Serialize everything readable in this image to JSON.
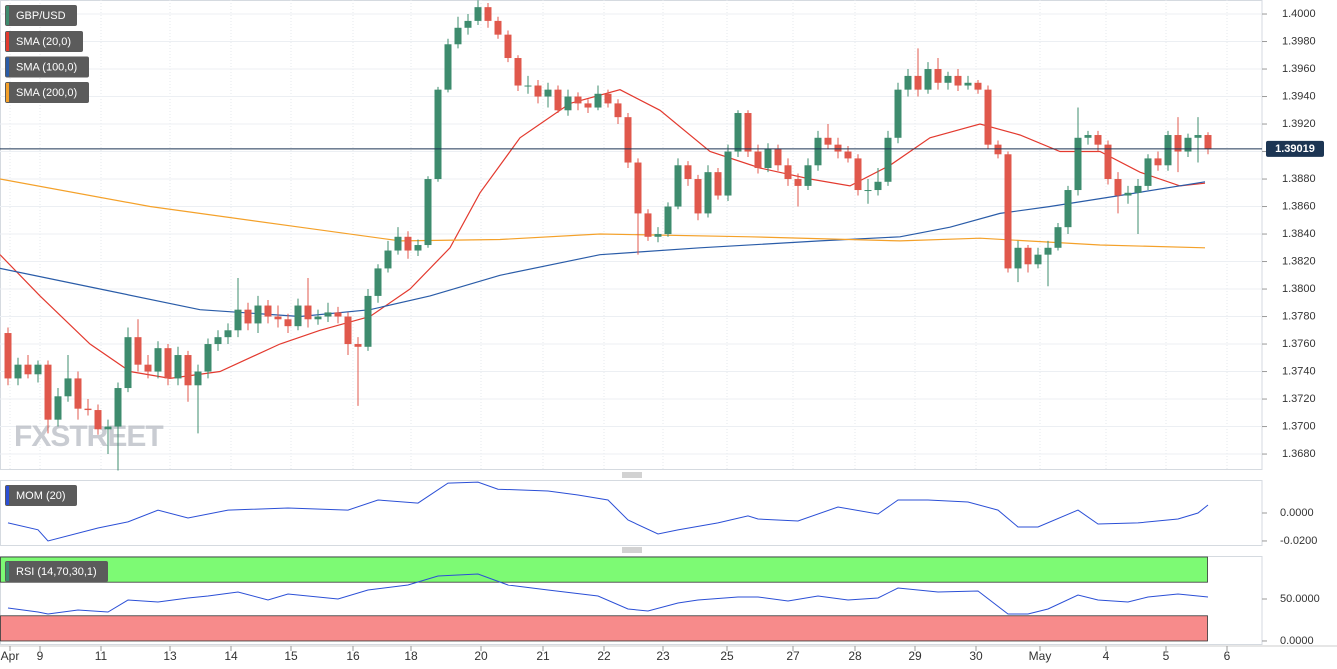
{
  "chart_data": [
    {
      "type": "candlestick",
      "symbol": "GBP/USD",
      "watermark": "FXSTREET",
      "up_color": "#3e8c6e",
      "down_color": "#e0584c",
      "xlim": [
        -0.8,
        120.7
      ],
      "xticks": [
        {
          "value": 0.2,
          "label": "Apr"
        },
        {
          "value": 3.2,
          "label": "9"
        },
        {
          "value": 9.3,
          "label": "11"
        },
        {
          "value": 16.2,
          "label": "13"
        },
        {
          "value": 22.3,
          "label": "14"
        },
        {
          "value": 28.3,
          "label": "15"
        },
        {
          "value": 34.5,
          "label": "16"
        },
        {
          "value": 40.3,
          "label": "18"
        },
        {
          "value": 47.3,
          "label": "20"
        },
        {
          "value": 53.5,
          "label": "21"
        },
        {
          "value": 59.6,
          "label": "22"
        },
        {
          "value": 65.5,
          "label": "23"
        },
        {
          "value": 71.9,
          "label": "25"
        },
        {
          "value": 78.5,
          "label": "27"
        },
        {
          "value": 84.7,
          "label": "28"
        },
        {
          "value": 90.7,
          "label": "29"
        },
        {
          "value": 96.8,
          "label": "30"
        },
        {
          "value": 103.2,
          "label": "May"
        },
        {
          "value": 109.8,
          "label": "4"
        },
        {
          "value": 115.8,
          "label": "5"
        },
        {
          "value": 121.9,
          "label": "6"
        }
      ],
      "ylim": [
        1.36684,
        1.40102
      ],
      "yticks": [
        {
          "value": 1.368,
          "label": "1.3680"
        },
        {
          "value": 1.37,
          "label": "1.3700"
        },
        {
          "value": 1.372,
          "label": "1.3720"
        },
        {
          "value": 1.374,
          "label": "1.3740"
        },
        {
          "value": 1.376,
          "label": "1.3760"
        },
        {
          "value": 1.378,
          "label": "1.3780"
        },
        {
          "value": 1.38,
          "label": "1.3800"
        },
        {
          "value": 1.382,
          "label": "1.3820"
        },
        {
          "value": 1.384,
          "label": "1.3840"
        },
        {
          "value": 1.386,
          "label": "1.3860"
        },
        {
          "value": 1.388,
          "label": "1.3880"
        },
        {
          "value": 1.39,
          "label": "1.3900"
        },
        {
          "value": 1.392,
          "label": "1.3920"
        },
        {
          "value": 1.394,
          "label": "1.3940"
        },
        {
          "value": 1.396,
          "label": "1.3960"
        },
        {
          "value": 1.398,
          "label": "1.3980"
        },
        {
          "value": 1.4,
          "label": "1.4000"
        }
      ],
      "grid": true,
      "last_price": 1.39019,
      "last_price_color": "#1c3553",
      "open": [
        1.3768,
        1.3735,
        1.3745,
        1.3738,
        1.3745,
        1.3705,
        1.3722,
        1.3735,
        1.3713,
        1.3712,
        1.3698,
        1.37,
        1.3728,
        1.3765,
        1.3745,
        1.374,
        1.3757,
        1.3735,
        1.3752,
        1.373,
        1.374,
        1.376,
        1.3765,
        1.377,
        1.3785,
        1.3775,
        1.3788,
        1.378,
        1.3778,
        1.3773,
        1.3788,
        1.3778,
        1.378,
        1.3783,
        1.378,
        1.376,
        1.3758,
        1.3795,
        1.3815,
        1.3828,
        1.3838,
        1.3828,
        1.3832,
        1.388,
        1.3945,
        1.3978,
        1.399,
        1.3995,
        1.4005,
        1.3995,
        1.3985,
        1.3968,
        1.3948,
        1.3948,
        1.394,
        1.3945,
        1.393,
        1.394,
        1.3935,
        1.3932,
        1.3942,
        1.3935,
        1.3925,
        1.3892,
        1.3855,
        1.3838,
        1.384,
        1.386,
        1.389,
        1.388,
        1.3855,
        1.3885,
        1.3868,
        1.39,
        1.3928,
        1.39,
        1.3888,
        1.3902,
        1.389,
        1.388,
        1.3875,
        1.389,
        1.391,
        1.3905,
        1.39,
        1.3895,
        1.3872,
        1.3872,
        1.3878,
        1.391,
        1.3945,
        1.3955,
        1.3945,
        1.396,
        1.395,
        1.3955,
        1.3948,
        1.395,
        1.3945,
        1.3905,
        1.3898,
        1.3815,
        1.383,
        1.3818,
        1.3825,
        1.383,
        1.3845,
        1.3872,
        1.391,
        1.3912,
        1.3905,
        1.388,
        1.3868,
        1.387,
        1.3875,
        1.3895,
        1.389,
        1.3912,
        1.39,
        1.391,
        1.3912
      ],
      "high": [
        1.3772,
        1.375,
        1.3752,
        1.3748,
        1.3748,
        1.3728,
        1.3752,
        1.374,
        1.372,
        1.3716,
        1.3705,
        1.3732,
        1.3772,
        1.3778,
        1.3752,
        1.3762,
        1.376,
        1.3758,
        1.3755,
        1.3745,
        1.3764,
        1.377,
        1.3775,
        1.3808,
        1.379,
        1.3795,
        1.3792,
        1.3788,
        1.3782,
        1.3793,
        1.3808,
        1.3785,
        1.379,
        1.3787,
        1.3783,
        1.3765,
        1.38,
        1.3818,
        1.3835,
        1.3845,
        1.3842,
        1.3836,
        1.3882,
        1.3947,
        1.3982,
        1.3998,
        1.4,
        1.401,
        1.4008,
        1.3998,
        1.3988,
        1.397,
        1.3955,
        1.3952,
        1.395,
        1.3948,
        1.3945,
        1.3943,
        1.3938,
        1.3948,
        1.3945,
        1.3938,
        1.3928,
        1.3895,
        1.3858,
        1.3845,
        1.3863,
        1.3895,
        1.3893,
        1.3883,
        1.389,
        1.3888,
        1.3905,
        1.393,
        1.393,
        1.3905,
        1.3906,
        1.3905,
        1.3895,
        1.3884,
        1.3895,
        1.3915,
        1.392,
        1.391,
        1.3904,
        1.3898,
        1.388,
        1.3888,
        1.3915,
        1.395,
        1.396,
        1.3975,
        1.3965,
        1.3968,
        1.3958,
        1.396,
        1.3955,
        1.3952,
        1.3948,
        1.3908,
        1.39,
        1.3835,
        1.3832,
        1.383,
        1.3835,
        1.3848,
        1.3875,
        1.3932,
        1.3915,
        1.3915,
        1.3908,
        1.3885,
        1.3875,
        1.388,
        1.3898,
        1.39,
        1.3915,
        1.3925,
        1.3913,
        1.3925,
        1.3914
      ],
      "low": [
        1.373,
        1.373,
        1.3735,
        1.3732,
        1.3695,
        1.37,
        1.3718,
        1.3705,
        1.3708,
        1.3694,
        1.368,
        1.3668,
        1.3725,
        1.374,
        1.3735,
        1.3735,
        1.373,
        1.373,
        1.3718,
        1.3695,
        1.3735,
        1.3755,
        1.376,
        1.3765,
        1.377,
        1.3768,
        1.3775,
        1.3772,
        1.3768,
        1.377,
        1.3772,
        1.3774,
        1.3776,
        1.3775,
        1.3752,
        1.3715,
        1.3755,
        1.379,
        1.3812,
        1.3825,
        1.3822,
        1.3824,
        1.383,
        1.3878,
        1.3943,
        1.3975,
        1.3985,
        1.3992,
        1.399,
        1.3982,
        1.3965,
        1.3944,
        1.3942,
        1.3935,
        1.3932,
        1.3928,
        1.3926,
        1.393,
        1.3928,
        1.393,
        1.3932,
        1.392,
        1.3888,
        1.3825,
        1.3835,
        1.3834,
        1.3838,
        1.3858,
        1.3875,
        1.385,
        1.3852,
        1.3865,
        1.3864,
        1.3896,
        1.3896,
        1.3884,
        1.3885,
        1.3886,
        1.3875,
        1.386,
        1.3872,
        1.3886,
        1.3902,
        1.3895,
        1.3892,
        1.3868,
        1.3862,
        1.3868,
        1.3875,
        1.3906,
        1.394,
        1.394,
        1.3942,
        1.3945,
        1.3945,
        1.3944,
        1.3945,
        1.3942,
        1.3902,
        1.3895,
        1.3812,
        1.3805,
        1.3812,
        1.3815,
        1.3802,
        1.3828,
        1.384,
        1.3868,
        1.3905,
        1.39,
        1.3876,
        1.3855,
        1.3862,
        1.384,
        1.3872,
        1.3886,
        1.3886,
        1.3885,
        1.3896,
        1.3892,
        1.3898
      ],
      "close": [
        1.3735,
        1.3745,
        1.3738,
        1.3745,
        1.3705,
        1.3722,
        1.3735,
        1.3713,
        1.3712,
        1.3698,
        1.37,
        1.3728,
        1.3765,
        1.3745,
        1.374,
        1.3757,
        1.3735,
        1.3752,
        1.373,
        1.374,
        1.376,
        1.3765,
        1.377,
        1.3785,
        1.3775,
        1.3788,
        1.378,
        1.3778,
        1.3773,
        1.3788,
        1.3778,
        1.378,
        1.3783,
        1.378,
        1.376,
        1.3758,
        1.3795,
        1.3815,
        1.3828,
        1.3838,
        1.3828,
        1.3832,
        1.388,
        1.3945,
        1.3978,
        1.399,
        1.3995,
        1.4005,
        1.3995,
        1.3985,
        1.3968,
        1.3948,
        1.3948,
        1.394,
        1.3945,
        1.393,
        1.394,
        1.3935,
        1.3932,
        1.3942,
        1.3935,
        1.3925,
        1.3892,
        1.3855,
        1.3838,
        1.384,
        1.386,
        1.389,
        1.388,
        1.3855,
        1.3885,
        1.3868,
        1.39,
        1.3928,
        1.39,
        1.3888,
        1.3902,
        1.389,
        1.388,
        1.3875,
        1.389,
        1.391,
        1.3905,
        1.39,
        1.3895,
        1.3872,
        1.3872,
        1.3878,
        1.391,
        1.3945,
        1.3955,
        1.3945,
        1.396,
        1.395,
        1.3955,
        1.3948,
        1.395,
        1.3945,
        1.3905,
        1.3898,
        1.3815,
        1.383,
        1.3818,
        1.3825,
        1.383,
        1.3845,
        1.3872,
        1.391,
        1.3912,
        1.3905,
        1.388,
        1.3868,
        1.387,
        1.3875,
        1.3895,
        1.389,
        1.3912,
        1.39,
        1.391,
        1.3912,
        1.3902
      ],
      "overlays": [
        {
          "name": "SMA (20,0)",
          "color": "#e33a2f",
          "x": [
            -0.8,
            3.2,
            8.2,
            12.2,
            16.2,
            21.2,
            27.2,
            31.2,
            36.2,
            40.2,
            44.2,
            47.2,
            51.2,
            56.2,
            61.2,
            65.2,
            70.2,
            75.2,
            80.2,
            84.2,
            88.2,
            92.2,
            97.2,
            101.2,
            105.2,
            109.2,
            113.2,
            117.2,
            119.7
          ],
          "values": [
            1.3825,
            1.3795,
            1.376,
            1.374,
            1.3735,
            1.374,
            1.376,
            1.377,
            1.378,
            1.38,
            1.383,
            1.387,
            1.391,
            1.3935,
            1.3945,
            1.393,
            1.39,
            1.3888,
            1.388,
            1.3875,
            1.389,
            1.391,
            1.392,
            1.3912,
            1.39,
            1.39,
            1.3885,
            1.3875,
            1.3877
          ]
        },
        {
          "name": "SMA (100,0)",
          "color": "#2a5ca8",
          "x": [
            -0.8,
            9.2,
            19.2,
            29.2,
            36.2,
            42.2,
            49.2,
            59.2,
            69.2,
            81.2,
            89.2,
            94.2,
            99.2,
            104.2,
            111.2,
            119.7
          ],
          "values": [
            1.3815,
            1.38,
            1.3785,
            1.378,
            1.3785,
            1.3795,
            1.381,
            1.3825,
            1.383,
            1.3835,
            1.3838,
            1.3845,
            1.3855,
            1.386,
            1.3868,
            1.3878
          ]
        },
        {
          "name": "SMA (200,0)",
          "color": "#f4a12a",
          "x": [
            -0.8,
            14.2,
            29.2,
            39.2,
            49.2,
            59.2,
            74.2,
            89.2,
            97.2,
            109.2,
            119.7
          ],
          "values": [
            1.388,
            1.386,
            1.3845,
            1.3835,
            1.3836,
            1.384,
            1.3838,
            1.3835,
            1.3837,
            1.3832,
            1.383
          ]
        }
      ]
    },
    {
      "type": "line",
      "name": "MOM (20)",
      "color": "#2b4fd6",
      "ylim": [
        -0.0236,
        0.0236
      ],
      "yticks": [
        {
          "value": 0,
          "label": "0.0000"
        },
        {
          "value": -0.02,
          "label": "-0.0200"
        }
      ],
      "x": [
        0,
        3,
        4,
        9,
        12,
        15,
        18,
        22,
        28,
        34,
        37,
        41,
        44,
        47,
        49,
        54,
        57,
        60,
        62,
        65,
        67,
        71,
        74,
        75,
        79,
        83,
        87,
        89,
        92,
        96,
        99,
        101,
        103,
        107,
        109,
        113,
        117,
        119,
        120
      ],
      "values": [
        -0.0071,
        -0.012,
        -0.02,
        -0.0107,
        -0.0064,
        0.0021,
        -0.0036,
        0.0021,
        0.0036,
        0.0021,
        0.0093,
        0.0071,
        0.0214,
        0.0221,
        0.017,
        0.0157,
        0.0129,
        0.0093,
        -0.005,
        -0.015,
        -0.0121,
        -0.0071,
        -0.0021,
        -0.0043,
        -0.0057,
        0.0043,
        -0.0007,
        0.0093,
        0.0093,
        0.0079,
        0.0021,
        -0.01,
        -0.01,
        0.0021,
        -0.0079,
        -0.0071,
        -0.0043,
        0,
        0.0057
      ]
    },
    {
      "type": "line",
      "name": "RSI (14,70,30,1)",
      "color": "#2b4fd6",
      "legend_color": "#3e8c6e",
      "ylim": [
        -4.8,
        101.2
      ],
      "yticks": [
        {
          "value": 50,
          "label": "50.0000"
        },
        {
          "value": 0,
          "label": "0.0000"
        }
      ],
      "bands": [
        {
          "from": 70,
          "to": 100,
          "color": "#7dfa74"
        },
        {
          "from": 0,
          "to": 30,
          "color": "#f78b8b"
        }
      ],
      "x": [
        0,
        3,
        4,
        7,
        10,
        12,
        15,
        18,
        20,
        23,
        26,
        28,
        33,
        36,
        40,
        43,
        47,
        50,
        54,
        59,
        62,
        64,
        67,
        69,
        73,
        75,
        78,
        81,
        84,
        87,
        89,
        93,
        97,
        100,
        102,
        104,
        107,
        109,
        112,
        114,
        117,
        120
      ],
      "values": [
        39.3,
        34.5,
        32.1,
        36.9,
        34.5,
        48.8,
        46.4,
        51.2,
        53.6,
        58.3,
        48.8,
        56,
        50,
        60.7,
        66.7,
        77.4,
        79.8,
        66.7,
        60.7,
        53.6,
        38.1,
        35.7,
        45.2,
        48.8,
        52.4,
        52.4,
        47.6,
        53.6,
        48.8,
        51.2,
        63.1,
        58.3,
        59.5,
        32.1,
        32.1,
        38.1,
        54.8,
        48.8,
        46.4,
        52.4,
        56,
        52.4
      ]
    }
  ]
}
